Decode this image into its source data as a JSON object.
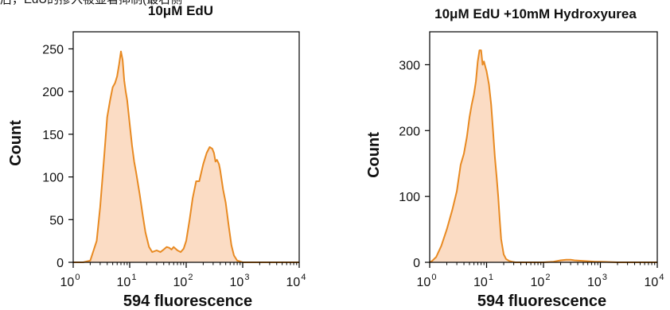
{
  "page": {
    "caption_fragment": "后，EdU的掺入被显著抑制(最右侧一列)。"
  },
  "colors": {
    "line": "#e88a22",
    "fill": "#fbdcc4",
    "axis": "#000000"
  },
  "chart_data": [
    {
      "type": "area",
      "title": "10μM EdU",
      "xlabel": "594 fluorescence",
      "ylabel": "Count",
      "xscale": "log",
      "xlim": [
        1,
        10000
      ],
      "ylim": [
        0,
        270
      ],
      "yticks": [
        0,
        50,
        100,
        150,
        200,
        250
      ],
      "xticks": [
        1,
        10,
        100,
        1000,
        10000
      ],
      "xtick_labels": [
        "10",
        "10",
        "10",
        "10",
        "10"
      ],
      "xtick_exponents": [
        "0",
        "1",
        "2",
        "3",
        "4"
      ],
      "grid": false,
      "series": [
        {
          "x": [
            1,
            1.5,
            2,
            2.6,
            3,
            3.5,
            4,
            4.5,
            5,
            5.5,
            6,
            6.5,
            7,
            7.5,
            8,
            8.5,
            9,
            10,
            11,
            12,
            13,
            15,
            17,
            19,
            22,
            25,
            30,
            35,
            40,
            45,
            50,
            55,
            60,
            70,
            80,
            90,
            100,
            115,
            130,
            150,
            170,
            200,
            230,
            260,
            290,
            310,
            330,
            350,
            380,
            400,
            450,
            500,
            560,
            630,
            700,
            800,
            900,
            1000,
            1500,
            2000,
            4000,
            10000
          ],
          "y": [
            0,
            0,
            2,
            25,
            65,
            120,
            170,
            190,
            205,
            210,
            218,
            232,
            247,
            237,
            213,
            200,
            190,
            162,
            137,
            118,
            105,
            80,
            55,
            35,
            18,
            12,
            14,
            12,
            15,
            18,
            17,
            15,
            18,
            14,
            12,
            16,
            25,
            50,
            75,
            95,
            95,
            115,
            128,
            135,
            133,
            128,
            118,
            120,
            115,
            108,
            85,
            70,
            45,
            20,
            8,
            2,
            1,
            0,
            0,
            0,
            0,
            0
          ]
        }
      ]
    },
    {
      "type": "area",
      "title": "10μM EdU +10mM Hydroxyurea",
      "xlabel": "594 fluorescence",
      "ylabel": "Count",
      "xscale": "log",
      "xlim": [
        1,
        10000
      ],
      "ylim": [
        0,
        350
      ],
      "yticks": [
        0,
        100,
        200,
        300
      ],
      "xticks": [
        1,
        10,
        100,
        1000,
        10000
      ],
      "xtick_labels": [
        "10",
        "10",
        "10",
        "10",
        "10"
      ],
      "xtick_exponents": [
        "0",
        "1",
        "2",
        "3",
        "4"
      ],
      "grid": false,
      "series": [
        {
          "x": [
            1,
            1.1,
            1.3,
            1.6,
            2,
            2.5,
            3,
            3.5,
            4,
            4.5,
            5,
            5.5,
            6,
            6.5,
            7,
            7.5,
            8,
            8.5,
            9,
            9.5,
            10,
            11,
            12,
            13,
            14,
            15,
            16,
            17,
            18,
            20,
            22,
            25,
            28,
            32,
            40,
            60,
            100,
            150,
            200,
            250,
            300,
            350,
            500,
            800,
            1000,
            2000,
            5000,
            10000
          ],
          "y": [
            0,
            2,
            8,
            25,
            50,
            80,
            108,
            148,
            165,
            190,
            220,
            240,
            255,
            275,
            305,
            322,
            322,
            300,
            305,
            297,
            290,
            270,
            240,
            200,
            160,
            130,
            100,
            65,
            35,
            12,
            5,
            2,
            1,
            0,
            0,
            0,
            0,
            1,
            3,
            4,
            4,
            3,
            2,
            1,
            1,
            0,
            0,
            0
          ]
        }
      ]
    }
  ]
}
